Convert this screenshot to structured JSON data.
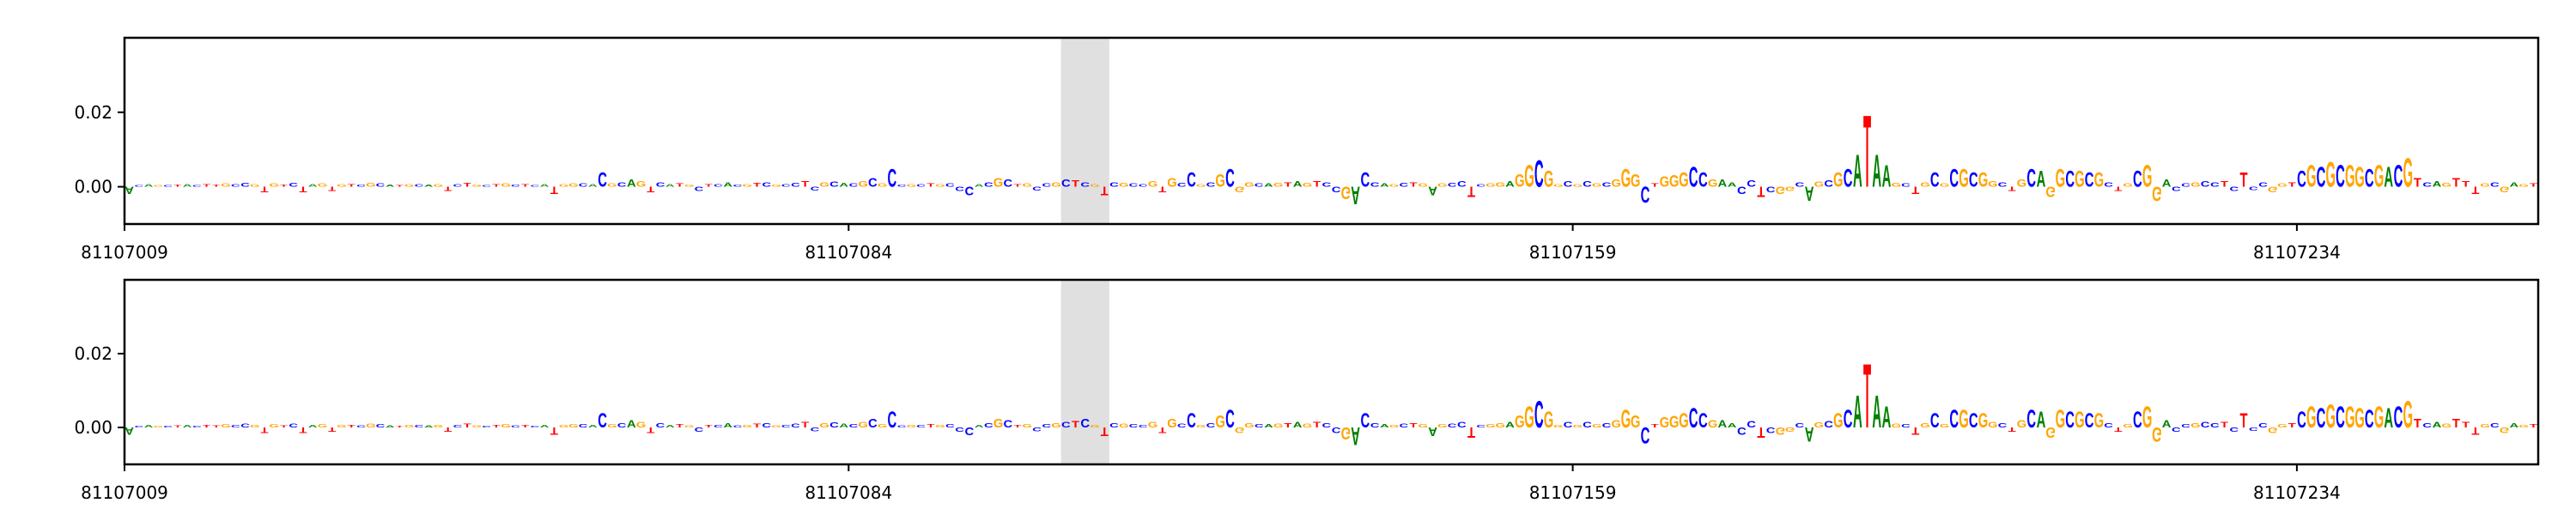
{
  "chart_data": [
    {
      "type": "logo",
      "letter_colors": {
        "A": "#008000",
        "C": "#0000ff",
        "G": "#ffa500",
        "T": "#ff0000"
      },
      "xlim": [
        81107009,
        81107259
      ],
      "xticks": [
        81107009,
        81107084,
        81107159,
        81107234
      ],
      "ylim": [
        -0.01,
        0.04
      ],
      "yticks": [
        {
          "value": 0,
          "label": "0.00"
        },
        0.02
      ],
      "highlight": [
        81107106,
        81107111
      ],
      "categories": [
        "A",
        "C",
        "A",
        "G",
        "C",
        "T",
        "A",
        "C",
        "T",
        "T",
        "G",
        "C",
        "C",
        "G",
        "T",
        "G",
        "T",
        "C",
        "T",
        "A",
        "G",
        "T",
        "G",
        "T",
        "C",
        "G",
        "C",
        "A",
        "T",
        "G",
        "C",
        "A",
        "G",
        "T",
        "C",
        "T",
        "G",
        "C",
        "T",
        "G",
        "C",
        "T",
        "C",
        "A",
        "T",
        "G",
        "G",
        "C",
        "A",
        "C",
        "G",
        "C",
        "A",
        "G",
        "T",
        "C",
        "A",
        "T",
        "G",
        "C",
        "T",
        "C",
        "A",
        "C",
        "G",
        "T",
        "C",
        "G",
        "C",
        "C",
        "T",
        "C",
        "G",
        "C",
        "A",
        "C",
        "G",
        "C",
        "G",
        "C",
        "C",
        "G",
        "C",
        "T",
        "G",
        "C",
        "C",
        "C",
        "A",
        "C",
        "G",
        "C",
        "T",
        "G",
        "C",
        "C",
        "G",
        "C",
        "T",
        "C",
        "G",
        "T",
        "C",
        "G",
        "C",
        "C",
        "G",
        "T",
        "G",
        "C",
        "C",
        "G",
        "C",
        "G",
        "C",
        "G",
        "G",
        "C",
        "A",
        "G",
        "T",
        "A",
        "G",
        "T",
        "C",
        "C",
        "G",
        "A",
        "C",
        "C",
        "A",
        "G",
        "C",
        "T",
        "G",
        "A",
        "G",
        "C",
        "C",
        "T",
        "C",
        "G",
        "G",
        "A",
        "G",
        "G",
        "C",
        "G",
        "G",
        "C",
        "G",
        "C",
        "G",
        "C",
        "G",
        "G",
        "G",
        "C",
        "T",
        "G",
        "G",
        "G",
        "C",
        "C",
        "G",
        "A",
        "A",
        "C",
        "C",
        "T",
        "C",
        "G",
        "G",
        "C",
        "A",
        "G",
        "C",
        "G",
        "C",
        "A",
        "T",
        "A",
        "A",
        "G",
        "C",
        "T",
        "G",
        "C",
        "G",
        "C",
        "G",
        "C",
        "G",
        "G",
        "C",
        "T",
        "G",
        "C",
        "A",
        "G",
        "G",
        "C",
        "G",
        "C",
        "G",
        "C",
        "T",
        "G",
        "C",
        "G",
        "G",
        "A",
        "C",
        "C",
        "G",
        "C",
        "C",
        "T",
        "C",
        "T",
        "C",
        "C",
        "G",
        "G",
        "T",
        "C",
        "G",
        "C",
        "G",
        "C",
        "G",
        "G",
        "C",
        "G",
        "A",
        "C",
        "G",
        "T",
        "C",
        "A",
        "G",
        "T",
        "T",
        "T",
        "G",
        "C",
        "G",
        "A",
        "G",
        "T"
      ],
      "values": [
        -0.002,
        0.0005,
        0.0008,
        0.0004,
        0.0005,
        0.0006,
        0.0007,
        0.0005,
        0.0008,
        0.0006,
        0.0009,
        0.0008,
        0.001,
        0.0007,
        -0.0015,
        0.0009,
        0.0006,
        0.001,
        -0.0015,
        0.0008,
        0.0009,
        -0.0012,
        0.0008,
        0.0007,
        0.0006,
        0.001,
        0.0009,
        0.0006,
        0.0005,
        0.0008,
        0.0007,
        0.0006,
        0.0008,
        -0.0012,
        0.0007,
        0.001,
        0.0006,
        0.0005,
        0.0008,
        0.0009,
        0.0006,
        0.0007,
        0.0005,
        0.0008,
        -0.002,
        0.0008,
        0.0009,
        0.0009,
        0.0008,
        0.004,
        0.0009,
        0.0012,
        0.002,
        0.0015,
        -0.0015,
        0.0012,
        0.0008,
        0.0009,
        0.0006,
        -0.0012,
        0.0008,
        0.0007,
        0.0012,
        0.0006,
        0.0008,
        0.001,
        0.0012,
        0.0006,
        0.0008,
        0.0011,
        0.0015,
        -0.001,
        0.0012,
        0.0014,
        0.001,
        0.0009,
        0.0015,
        0.0025,
        0.0009,
        0.005,
        0.0006,
        0.0008,
        0.0007,
        0.0009,
        0.0008,
        0.0009,
        -0.0012,
        -0.0025,
        0.0008,
        0.0013,
        0.0025,
        0.002,
        0.0008,
        0.0009,
        -0.001,
        0.0009,
        0.0013,
        0.002,
        0.0018,
        0.0012,
        0.0008,
        -0.0025,
        0.0012,
        0.001,
        0.0009,
        0.0008,
        0.0015,
        -0.0015,
        0.0025,
        0.001,
        0.004,
        0.0008,
        0.0012,
        0.0035,
        0.005,
        -0.0015,
        0.0012,
        0.0009,
        0.0009,
        0.001,
        0.0012,
        0.0015,
        0.001,
        0.0015,
        0.0012,
        -0.0015,
        -0.0035,
        -0.005,
        0.004,
        0.0012,
        0.0009,
        0.0008,
        0.001,
        0.0012,
        0.0009,
        -0.0025,
        0.0009,
        0.001,
        0.0015,
        -0.003,
        0.0008,
        0.0009,
        0.0012,
        0.0015,
        0.0035,
        0.006,
        0.0075,
        0.0045,
        0.0008,
        0.0015,
        0.0008,
        0.0015,
        0.0009,
        0.0012,
        0.002,
        0.005,
        0.0035,
        -0.0045,
        0.0009,
        0.003,
        0.0032,
        0.004,
        0.0055,
        0.004,
        0.002,
        0.002,
        0.0012,
        -0.002,
        0.0018,
        -0.003,
        -0.0015,
        -0.002,
        -0.0012,
        0.0012,
        -0.004,
        0.0014,
        0.0018,
        0.004,
        0.005,
        0.009,
        0.02,
        0.009,
        0.006,
        0.001,
        0.0009,
        -0.002,
        0.0012,
        0.004,
        0.0009,
        0.005,
        0.005,
        0.004,
        0.004,
        0.0015,
        0.0012,
        -0.0012,
        0.002,
        0.005,
        0.0045,
        -0.003,
        0.005,
        0.0045,
        0.0045,
        0.004,
        0.004,
        0.0012,
        -0.0012,
        0.0009,
        0.0045,
        0.006,
        -0.004,
        0.002,
        -0.0012,
        0.0009,
        0.0012,
        0.0015,
        0.0012,
        0.0015,
        -0.0012,
        0.004,
        -0.0009,
        0.0012,
        -0.0015,
        0.0009,
        0.0012,
        0.0045,
        0.006,
        0.0055,
        0.007,
        0.006,
        0.006,
        0.0055,
        0.005,
        0.006,
        0.0055,
        0.006,
        0.008,
        0.0025,
        0.0012,
        0.0015,
        0.001,
        0.0025,
        0.0015,
        -0.002,
        0.0009,
        0.0012,
        -0.0015,
        0.0012,
        0.0008,
        0.0009
      ]
    },
    {
      "type": "logo",
      "letter_colors": {
        "A": "#008000",
        "C": "#0000ff",
        "G": "#ffa500",
        "T": "#ff0000"
      },
      "xlim": [
        81107009,
        81107259
      ],
      "xticks": [
        81107009,
        81107084,
        81107159,
        81107234
      ],
      "ylim": [
        -0.01,
        0.04
      ],
      "yticks": [
        {
          "value": 0,
          "label": "0.00"
        },
        0.02
      ],
      "highlight": [
        81107106,
        81107111
      ],
      "categories": [
        "A",
        "C",
        "A",
        "G",
        "C",
        "T",
        "A",
        "C",
        "T",
        "T",
        "G",
        "C",
        "C",
        "G",
        "T",
        "G",
        "T",
        "C",
        "T",
        "A",
        "G",
        "T",
        "G",
        "T",
        "C",
        "G",
        "C",
        "A",
        "T",
        "G",
        "C",
        "A",
        "G",
        "T",
        "C",
        "T",
        "G",
        "C",
        "T",
        "G",
        "C",
        "T",
        "C",
        "A",
        "T",
        "G",
        "G",
        "C",
        "A",
        "C",
        "G",
        "C",
        "A",
        "G",
        "T",
        "C",
        "A",
        "T",
        "G",
        "C",
        "T",
        "C",
        "A",
        "C",
        "G",
        "T",
        "C",
        "G",
        "C",
        "C",
        "T",
        "C",
        "G",
        "C",
        "A",
        "C",
        "G",
        "C",
        "G",
        "C",
        "C",
        "G",
        "C",
        "T",
        "G",
        "C",
        "C",
        "C",
        "A",
        "C",
        "G",
        "C",
        "T",
        "G",
        "C",
        "C",
        "G",
        "C",
        "T",
        "C",
        "G",
        "T",
        "C",
        "G",
        "C",
        "C",
        "G",
        "T",
        "G",
        "C",
        "C",
        "G",
        "C",
        "G",
        "C",
        "G",
        "G",
        "C",
        "A",
        "G",
        "T",
        "A",
        "G",
        "T",
        "C",
        "C",
        "G",
        "A",
        "C",
        "C",
        "A",
        "G",
        "C",
        "T",
        "G",
        "A",
        "G",
        "C",
        "C",
        "T",
        "C",
        "G",
        "G",
        "A",
        "G",
        "G",
        "C",
        "G",
        "G",
        "C",
        "G",
        "C",
        "G",
        "C",
        "G",
        "G",
        "G",
        "C",
        "T",
        "G",
        "G",
        "G",
        "C",
        "C",
        "G",
        "A",
        "A",
        "C",
        "C",
        "T",
        "C",
        "G",
        "G",
        "C",
        "A",
        "G",
        "C",
        "G",
        "C",
        "A",
        "T",
        "A",
        "A",
        "G",
        "C",
        "T",
        "G",
        "C",
        "G",
        "C",
        "G",
        "C",
        "G",
        "G",
        "C",
        "T",
        "G",
        "C",
        "A",
        "G",
        "G",
        "C",
        "G",
        "C",
        "G",
        "C",
        "T",
        "G",
        "C",
        "G",
        "G",
        "A",
        "C",
        "C",
        "G",
        "C",
        "C",
        "T",
        "C",
        "T",
        "C",
        "C",
        "G",
        "G",
        "T",
        "C",
        "G",
        "C",
        "G",
        "C",
        "G",
        "G",
        "C",
        "G",
        "A",
        "C",
        "G",
        "T",
        "C",
        "A",
        "G",
        "T",
        "T",
        "T",
        "G",
        "C",
        "G",
        "A",
        "G",
        "T"
      ],
      "values": [
        -0.002,
        0.0005,
        0.0008,
        0.0004,
        0.0005,
        0.0006,
        0.0007,
        0.0005,
        0.0008,
        0.0006,
        0.0009,
        0.0008,
        0.001,
        0.0007,
        -0.0015,
        0.0009,
        0.0006,
        0.001,
        -0.0015,
        0.0008,
        0.0009,
        -0.0012,
        0.0008,
        0.0007,
        0.0006,
        0.001,
        0.0009,
        0.0006,
        0.0005,
        0.0008,
        0.0007,
        0.0006,
        0.0008,
        -0.0012,
        0.0007,
        0.001,
        0.0006,
        0.0005,
        0.0008,
        0.0009,
        0.0006,
        0.0007,
        0.0005,
        0.0008,
        -0.002,
        0.0008,
        0.0009,
        0.0009,
        0.0008,
        0.004,
        0.0009,
        0.0012,
        0.002,
        0.0015,
        -0.0015,
        0.0012,
        0.0008,
        0.0009,
        0.0006,
        -0.0012,
        0.0008,
        0.0007,
        0.0012,
        0.0006,
        0.0008,
        0.001,
        0.0012,
        0.0006,
        0.0008,
        0.0011,
        0.0015,
        -0.001,
        0.0012,
        0.0014,
        0.001,
        0.0009,
        0.0015,
        0.0025,
        0.0009,
        0.0045,
        0.0006,
        0.0008,
        0.0007,
        0.0009,
        0.0008,
        0.0009,
        -0.0012,
        -0.0022,
        0.0008,
        0.0013,
        0.0025,
        0.002,
        0.0008,
        0.0009,
        -0.001,
        0.0009,
        0.0013,
        0.0015,
        0.0018,
        0.0025,
        0.0008,
        -0.0025,
        0.0012,
        0.001,
        0.0009,
        0.0008,
        0.0015,
        -0.0015,
        0.0025,
        0.001,
        0.004,
        0.0008,
        0.0012,
        0.0035,
        0.005,
        -0.0015,
        0.0012,
        0.0009,
        0.0009,
        0.001,
        0.0012,
        0.0015,
        0.001,
        0.0015,
        0.0012,
        -0.0015,
        -0.0035,
        -0.005,
        0.004,
        0.0012,
        0.0009,
        0.0008,
        0.001,
        0.0012,
        0.0009,
        -0.0025,
        0.0009,
        0.001,
        0.0015,
        -0.003,
        0.0008,
        0.0009,
        0.0012,
        0.0015,
        0.0035,
        0.006,
        0.0075,
        0.0045,
        0.0008,
        0.0015,
        0.0008,
        0.0015,
        0.0009,
        0.0012,
        0.002,
        0.005,
        0.0035,
        -0.0045,
        0.0009,
        0.003,
        0.0032,
        0.004,
        0.0055,
        0.004,
        0.002,
        0.002,
        0.0012,
        -0.002,
        0.0018,
        -0.003,
        -0.0015,
        -0.002,
        -0.0012,
        0.0012,
        -0.004,
        0.0014,
        0.0018,
        0.004,
        0.005,
        0.009,
        0.018,
        0.009,
        0.006,
        0.001,
        0.0009,
        -0.002,
        0.0012,
        0.004,
        0.0009,
        0.005,
        0.005,
        0.004,
        0.004,
        0.0015,
        0.0012,
        -0.0012,
        0.002,
        0.005,
        0.0045,
        -0.003,
        0.005,
        0.0045,
        0.0045,
        0.004,
        0.004,
        0.0012,
        -0.0012,
        0.0009,
        0.0045,
        0.006,
        -0.004,
        0.002,
        -0.0012,
        0.0009,
        0.0012,
        0.0015,
        0.0012,
        0.0015,
        -0.0012,
        0.004,
        -0.0009,
        0.0012,
        -0.0015,
        0.0009,
        0.0012,
        0.0045,
        0.006,
        0.0055,
        0.0065,
        0.006,
        0.006,
        0.0055,
        0.005,
        0.006,
        0.0055,
        0.006,
        0.0075,
        0.0025,
        0.0012,
        0.0015,
        0.001,
        0.0025,
        0.0015,
        -0.002,
        0.0009,
        0.0012,
        -0.0015,
        0.0012,
        0.0008,
        0.0009
      ]
    }
  ]
}
